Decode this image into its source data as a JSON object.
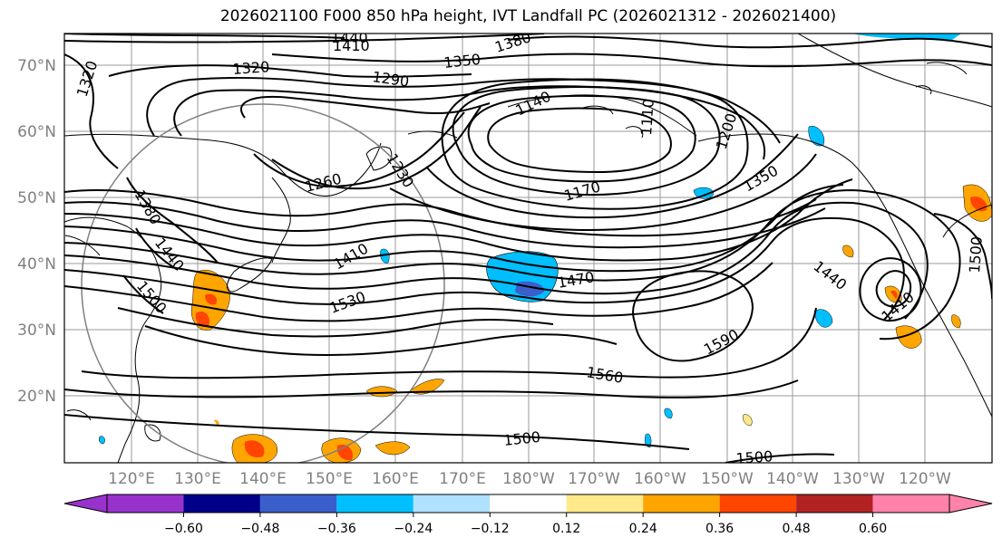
{
  "title": "2026021100 F000 850 hPa height, IVT Landfall PC (2026021312 - 2026021400)",
  "lon_labels": [
    "120°E",
    "130°E",
    "140°E",
    "150°E",
    "160°E",
    "170°E",
    "180°W",
    "170°W",
    "160°W",
    "150°W",
    "140°W",
    "130°W",
    "120°W"
  ],
  "lat_labels": [
    "70°N",
    "60°N",
    "50°N",
    "40°N",
    "30°N",
    "20°N"
  ],
  "contour_labels": [
    {
      "id": "c1440a",
      "text": "1440"
    },
    {
      "id": "c1410a",
      "text": "1410"
    },
    {
      "id": "c1380a",
      "text": "1380"
    },
    {
      "id": "c1350a",
      "text": "1350"
    },
    {
      "id": "c1320a",
      "text": "1320"
    },
    {
      "id": "c1320b",
      "text": "1320"
    },
    {
      "id": "c1290",
      "text": "1290"
    },
    {
      "id": "c1140",
      "text": "1140"
    },
    {
      "id": "c1110",
      "text": "1110"
    },
    {
      "id": "c1200",
      "text": "1200"
    },
    {
      "id": "c1230",
      "text": "1230"
    },
    {
      "id": "c1260",
      "text": "1260"
    },
    {
      "id": "c1170",
      "text": "1170"
    },
    {
      "id": "c1350b",
      "text": "1350"
    },
    {
      "id": "c1380b",
      "text": "1380"
    },
    {
      "id": "c1440b",
      "text": "1440"
    },
    {
      "id": "c1500a",
      "text": "1500"
    },
    {
      "id": "c1410b",
      "text": "1410"
    },
    {
      "id": "c1530",
      "text": "1530"
    },
    {
      "id": "c1470",
      "text": "1470"
    },
    {
      "id": "c1440c",
      "text": "1440"
    },
    {
      "id": "c1410c",
      "text": "1410"
    },
    {
      "id": "c1500b",
      "text": "1500"
    },
    {
      "id": "c1590",
      "text": "1590"
    },
    {
      "id": "c1560",
      "text": "1560"
    },
    {
      "id": "c1500c",
      "text": "1500"
    },
    {
      "id": "c1500d",
      "text": "1500"
    }
  ],
  "colorbar": {
    "ticks": [
      "−0.60",
      "−0.48",
      "−0.36",
      "−0.24",
      "−0.12",
      "0.12",
      "0.24",
      "0.36",
      "0.48",
      "0.60"
    ],
    "colors": [
      "#9932cc",
      "#00008b",
      "#3a5fcd",
      "#00bfff",
      "#b0e2ff",
      "#ffffff",
      "#ffe98a",
      "#ffa500",
      "#ff4500",
      "#b22222",
      "#ff82ab"
    ]
  }
}
